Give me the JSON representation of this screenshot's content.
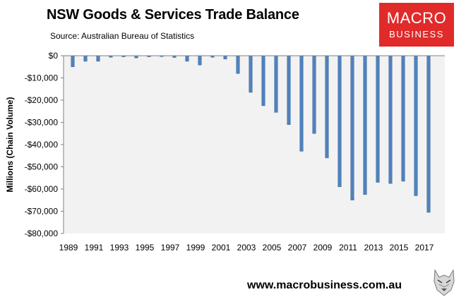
{
  "header": {
    "title": "NSW Goods & Services Trade Balance",
    "subtitle": "Source:  Australian Bureau of Statistics"
  },
  "logo": {
    "line1": "MACRO",
    "line2": "BUSINESS",
    "color": "#e12a2a"
  },
  "footer": {
    "url": "www.macrobusiness.com.au",
    "icon": "wolf-icon"
  },
  "chart_data": {
    "type": "bar",
    "title": "NSW Goods & Services Trade Balance",
    "ylabel": "Millions (Chain Volume)",
    "xlabel": "",
    "ylim": [
      -80000,
      0
    ],
    "yticks": [
      0,
      -10000,
      -20000,
      -30000,
      -40000,
      -50000,
      -60000,
      -70000,
      -80000
    ],
    "ytick_labels": [
      "$0",
      "-$10,000",
      "-$20,000",
      "-$30,000",
      "-$40,000",
      "-$50,000",
      "-$60,000",
      "-$70,000",
      "-$80,000"
    ],
    "xtick_labels": [
      "1989",
      "1991",
      "1993",
      "1995",
      "1997",
      "1999",
      "2001",
      "2003",
      "2005",
      "2007",
      "2009",
      "2011",
      "2013",
      "2015",
      "2017"
    ],
    "categories": [
      "1989",
      "1990",
      "1991",
      "1992",
      "1993",
      "1994",
      "1995",
      "1996",
      "1997",
      "1998",
      "1999",
      "2000",
      "2001",
      "2002",
      "2003",
      "2004",
      "2005",
      "2006",
      "2007",
      "2008",
      "2009",
      "2010",
      "2011",
      "2012",
      "2013",
      "2014",
      "2015",
      "2016",
      "2017",
      "2018"
    ],
    "values": [
      -5000,
      -2500,
      -2500,
      -700,
      -500,
      -1000,
      -500,
      -400,
      -800,
      -2500,
      -4200,
      -700,
      -1500,
      -8000,
      -16500,
      -22500,
      -25500,
      -31000,
      -43000,
      -35000,
      -46000,
      -59000,
      -65000,
      -62500,
      -57000,
      -57500,
      -56500,
      -63000,
      -70500,
      0
    ],
    "bar_color": "#4f81bd",
    "plot_background": "#f2f2f2",
    "grid": false,
    "legend": "none"
  }
}
